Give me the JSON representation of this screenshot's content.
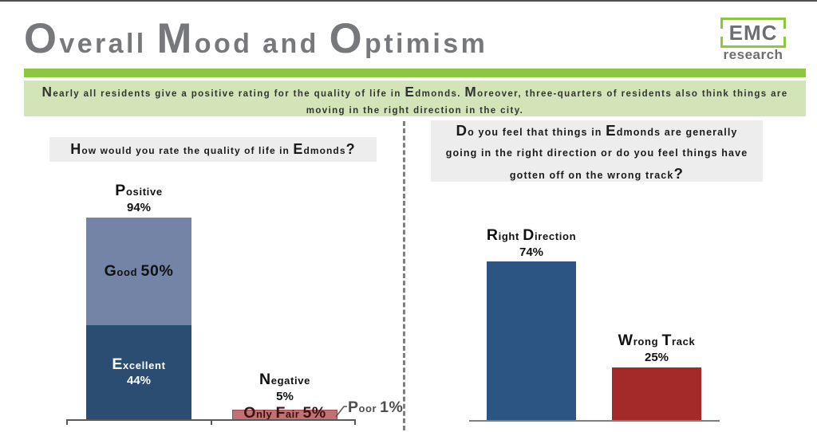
{
  "slide": {
    "title": "Overall Mood and Optimism",
    "logo": {
      "name": "EMC",
      "sub": "research"
    },
    "summary": "Nearly all residents give a positive rating for the quality of life in Edmonds. Moreover, three-quarters of residents also think things are moving in the right direction in the city."
  },
  "colors": {
    "accent_green": "#8DC63F",
    "summary_bg": "#D3E4B9",
    "title_gray": "#77787B",
    "question_bg": "#EDEDED",
    "good_blue": "#7384A6",
    "excellent_blue": "#2B4D72",
    "only_fair_red": "#C07176",
    "right_direction_blue": "#2D5584",
    "wrong_track_red": "#A32A28"
  },
  "left_panel": {
    "question": "How would you rate the quality of life in Edmonds?",
    "positive_label": "Positive",
    "positive_value": "94%",
    "good_label": "Good 50%",
    "excellent_label": "Excellent",
    "excellent_value": "44%",
    "negative_label": "Negative",
    "negative_value": "5%",
    "only_fair_label": "Only Fair 5%",
    "poor_label": "Poor 1%"
  },
  "right_panel": {
    "question": "Do you feel that things in Edmonds are generally going in the right direction or do you feel things have gotten off on the wrong track?",
    "right_direction_label": "Right Direction",
    "right_direction_value": "74%",
    "wrong_track_label": "Wrong Track",
    "wrong_track_value": "25%"
  },
  "chart_data": [
    {
      "type": "bar",
      "stacked": true,
      "title": "How would you rate the quality of life in Edmonds?",
      "categories": [
        "Positive",
        "Negative"
      ],
      "series": [
        {
          "name": "Excellent",
          "values": [
            44,
            null
          ]
        },
        {
          "name": "Good",
          "values": [
            50,
            null
          ]
        },
        {
          "name": "Only Fair",
          "values": [
            null,
            5
          ]
        },
        {
          "name": "Poor",
          "values": [
            null,
            1
          ]
        }
      ],
      "totals": {
        "Positive": 94,
        "Negative": 5
      },
      "ylim": [
        0,
        100
      ],
      "grid": false,
      "legend": "labels-on-bars"
    },
    {
      "type": "bar",
      "title": "Do you feel that things in Edmonds are generally going in the right direction or do you feel things have gotten off on the wrong track?",
      "categories": [
        "Right Direction",
        "Wrong Track"
      ],
      "values": [
        74,
        25
      ],
      "ylim": [
        0,
        100
      ],
      "grid": false,
      "legend": "labels-above-bars"
    }
  ]
}
